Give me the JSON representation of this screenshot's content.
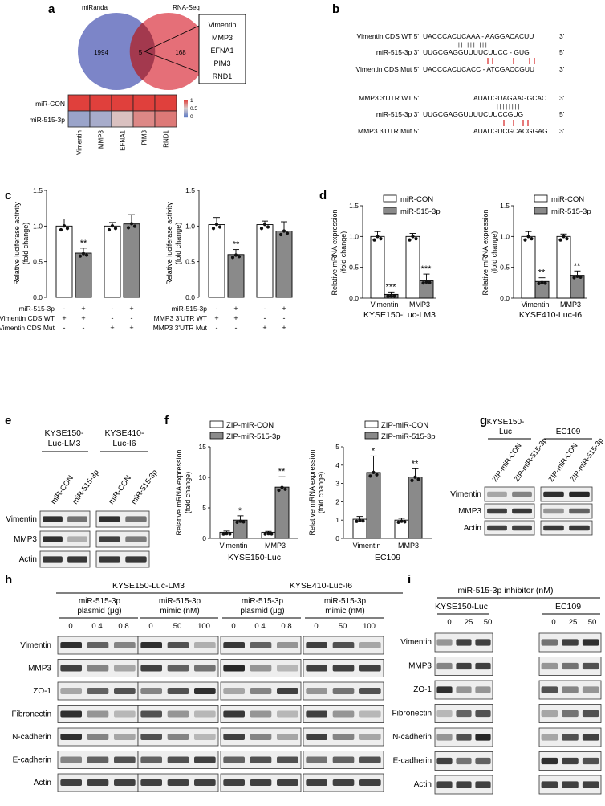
{
  "panels": {
    "a": {
      "letter": "a",
      "venn_left": "miRanda",
      "venn_right": "RNA-Seq",
      "n_left": "1994",
      "n_mid": "5",
      "n_right": "168",
      "genes": [
        "Vimentin",
        "MMP3",
        "EFNA1",
        "PIM3",
        "RND1"
      ],
      "heatmap_rows": [
        "miR-CON",
        "miR-515-3p"
      ],
      "heatmap_cols": [
        "Vimentin",
        "MMP3",
        "EFNA1",
        "PIM3",
        "RND1"
      ],
      "heatmap_values": [
        [
          1,
          1,
          1,
          1,
          1
        ],
        [
          0.25,
          0.3,
          0.55,
          0.75,
          0.8
        ]
      ],
      "scale_labels": [
        "1",
        "0.5",
        "0"
      ],
      "colors": {
        "high": "#e0403c",
        "low": "#5b78c4",
        "mid": "#d9cfcf",
        "venn_left": "#6e78c2",
        "venn_right": "#e05660",
        "venn_mid": "#a04050"
      }
    },
    "b": {
      "letter": "b",
      "vim": {
        "wt_label": "Vimentin CDS WT 5'",
        "wt_seq": "UACCCACUCAAA - AAGGACACUU",
        "wt_end": "3'",
        "bars": "|   | | | |  | | | | | |",
        "mir_label": "miR-515-3p 3'",
        "mir_seq": "UUGCGAGGUUUUCUUCC - GUG",
        "mir_end": "5'",
        "mut_label": "Vimentin CDS Mut 5'",
        "mut_seq": "UACCCACUCACC - ATCGACCGUU",
        "mut_end": "3'"
      },
      "mmp": {
        "wt_label": "MMP3 3'UTR WT 5'",
        "wt_seq": "AUAUGUAGAAGGCAC",
        "wt_end": "3'",
        "bars": "| | | | | | | |",
        "mir_label": "miR-515-3p 3'",
        "mir_seq": "UUGCGAGGUUUUCUUCCGUG",
        "mir_end": "5'",
        "mut_label": "MMP3 3'UTR Mut 5'",
        "mut_seq": "AUAUGUCGCACGGAG",
        "mut_end": "3'"
      }
    },
    "c": {
      "letter": "c",
      "ylabel1": "Relative luciferase activity",
      "ylabel2": "(fold change)",
      "yticks": [
        "0.0",
        "0.5",
        "1.0",
        "1.5"
      ],
      "left_rows": [
        {
          "label": "miR-515-3p",
          "vals": [
            "-",
            "+",
            "-",
            "+"
          ]
        },
        {
          "label": "Vimentin CDS WT",
          "vals": [
            "+",
            "+",
            "-",
            "-"
          ]
        },
        {
          "label": "Vimentin CDS Mut",
          "vals": [
            "-",
            "-",
            "+",
            "+"
          ]
        }
      ],
      "right_rows": [
        {
          "label": "miR-515-3p",
          "vals": [
            "-",
            "+",
            "-",
            "+"
          ]
        },
        {
          "label": "MMP3 3'UTR WT",
          "vals": [
            "+",
            "+",
            "-",
            "-"
          ]
        },
        {
          "label": "MMP3 3'UTR Mut",
          "vals": [
            "-",
            "-",
            "+",
            "+"
          ]
        }
      ],
      "sig": "**"
    },
    "d": {
      "letter": "d",
      "ylabel1": "Relative mRNA expression",
      "ylabel2": "(fold change)",
      "legend": [
        "miR-CON",
        "miR-515-3p"
      ],
      "yticks": [
        "0.0",
        "0.5",
        "1.0",
        "1.5"
      ],
      "left_title": "KYSE150-Luc-LM3",
      "right_title": "KYSE410-Luc-I6",
      "categories": [
        "Vimentin",
        "MMP3"
      ],
      "left_sig": [
        "***",
        "***"
      ],
      "right_sig": [
        "**",
        "**"
      ]
    },
    "e": {
      "letter": "e",
      "cell1": "KYSE150-",
      "cell1b": "Luc-LM3",
      "cell2": "KYSE410-",
      "cell2b": "Luc-I6",
      "lanes": [
        "miR-CON",
        "miR-515-3p",
        "miR-CON",
        "miR-515-3p"
      ],
      "rows": [
        "Vimentin",
        "MMP3",
        "Actin"
      ]
    },
    "f": {
      "letter": "f",
      "ylabel1": "Relative mRNA expression",
      "ylabel2": "(fold change)",
      "legend": [
        "ZIP-miR-CON",
        "ZIP-miR-515-3p"
      ],
      "left_yticks": [
        "0",
        "5",
        "10",
        "15"
      ],
      "right_yticks": [
        "0",
        "1",
        "2",
        "3",
        "4",
        "5"
      ],
      "left_title": "KYSE150-Luc",
      "right_title": "EC109",
      "categories": [
        "Vimentin",
        "MMP3"
      ],
      "left_sig": [
        "*",
        "**"
      ],
      "right_sig": [
        "*",
        "**"
      ]
    },
    "g": {
      "letter": "g",
      "cell1": "KYSE150-",
      "cell1b": "Luc",
      "cell2": "EC109",
      "lanes": [
        "ZIP-miR-CON",
        "ZIP-miR-515-3p",
        "ZIP-miR-CON",
        "ZIP-miR-515-3p"
      ],
      "rows": [
        "Vimentin",
        "MMP3",
        "Actin"
      ]
    },
    "h": {
      "letter": "h",
      "cell1": "KYSE150-Luc-LM3",
      "cell2": "KYSE410-Luc-I6",
      "group1": "miR-515-3p",
      "group1b": "plasmid (μg)",
      "group2": "miR-515-3p",
      "group2b": "mimic (nM)",
      "doses1": [
        "0",
        "0.4",
        "0.8"
      ],
      "doses2": [
        "0",
        "50",
        "100"
      ],
      "rows": [
        "Vimentin",
        "MMP3",
        "ZO-1",
        "Fibronectin",
        "N-cadherin",
        "E-cadherin",
        "Actin"
      ]
    },
    "i": {
      "letter": "i",
      "title": "miR-515-3p inhibitor (nM)",
      "cell1": "KYSE150-Luc",
      "cell2": "EC109",
      "doses": [
        "0",
        "25",
        "50"
      ],
      "rows": [
        "Vimentin",
        "MMP3",
        "ZO-1",
        "Fibronectin",
        "N-cadherin",
        "E-cadherin",
        "Actin"
      ]
    }
  },
  "chart_data": [
    {
      "type": "bar",
      "panel": "c-left",
      "title": "",
      "ylabel": "Relative luciferase activity (fold change)",
      "ylim": [
        0,
        1.5
      ],
      "categories": [
        "WT -",
        "WT +",
        "Mut -",
        "Mut +"
      ],
      "values": [
        1.0,
        0.62,
        1.0,
        1.03
      ]
    },
    {
      "type": "bar",
      "panel": "c-right",
      "title": "",
      "ylabel": "Relative luciferase activity (fold change)",
      "ylim": [
        0,
        1.5
      ],
      "categories": [
        "WT -",
        "WT +",
        "Mut -",
        "Mut +"
      ],
      "values": [
        1.02,
        0.6,
        1.02,
        0.93
      ]
    },
    {
      "type": "bar",
      "panel": "d-left",
      "title": "KYSE150-Luc-LM3",
      "ylabel": "Relative mRNA expression (fold change)",
      "ylim": [
        0,
        1.5
      ],
      "categories": [
        "Vimentin",
        "MMP3"
      ],
      "series": [
        {
          "name": "miR-CON",
          "values": [
            1.0,
            1.0
          ]
        },
        {
          "name": "miR-515-3p",
          "values": [
            0.06,
            0.28
          ]
        }
      ]
    },
    {
      "type": "bar",
      "panel": "d-right",
      "title": "KYSE410-Luc-I6",
      "ylabel": "Relative mRNA expression (fold change)",
      "ylim": [
        0,
        1.5
      ],
      "categories": [
        "Vimentin",
        "MMP3"
      ],
      "series": [
        {
          "name": "miR-CON",
          "values": [
            1.0,
            1.0
          ]
        },
        {
          "name": "miR-515-3p",
          "values": [
            0.27,
            0.37
          ]
        }
      ]
    },
    {
      "type": "bar",
      "panel": "f-left",
      "title": "KYSE150-Luc",
      "ylabel": "Relative mRNA expression (fold change)",
      "ylim": [
        0,
        15
      ],
      "categories": [
        "Vimentin",
        "MMP3"
      ],
      "series": [
        {
          "name": "ZIP-miR-CON",
          "values": [
            1.0,
            1.0
          ]
        },
        {
          "name": "ZIP-miR-515-3p",
          "values": [
            3.0,
            8.4
          ]
        }
      ]
    },
    {
      "type": "bar",
      "panel": "f-right",
      "title": "EC109",
      "ylabel": "Relative mRNA expression (fold change)",
      "ylim": [
        0,
        5
      ],
      "categories": [
        "Vimentin",
        "MMP3"
      ],
      "series": [
        {
          "name": "ZIP-miR-CON",
          "values": [
            1.05,
            1.0
          ]
        },
        {
          "name": "ZIP-miR-515-3p",
          "values": [
            3.6,
            3.35
          ]
        }
      ]
    }
  ]
}
